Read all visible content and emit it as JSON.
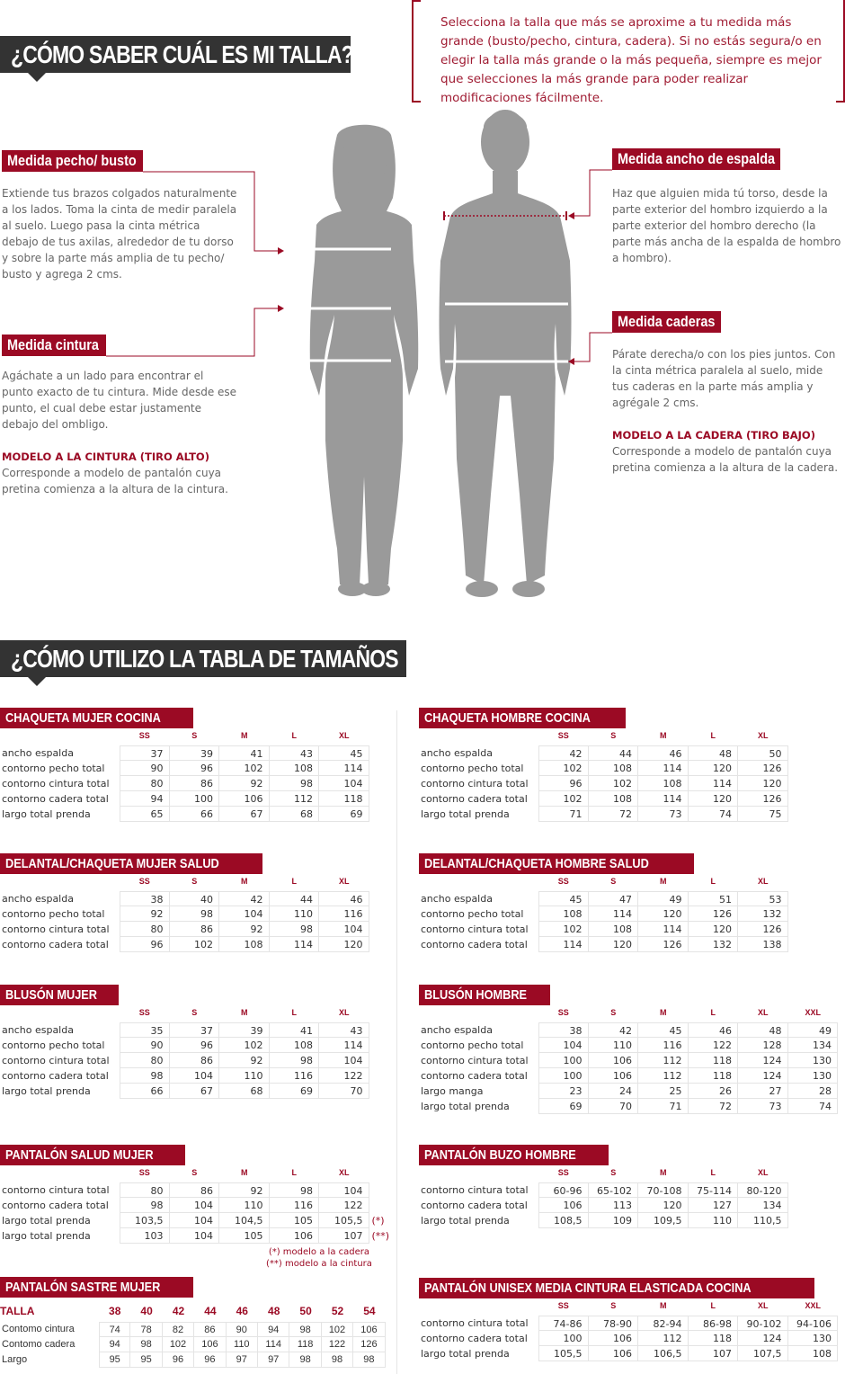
{
  "colors": {
    "accent": "#9b0a24",
    "heading_bg": "#333333",
    "figure": "#9a9a9a"
  },
  "header": {
    "title": "¿CÓMO SABER CUÁL ES MI TALLA?",
    "note": "Selecciona la talla que más se aproxime a tu medida más grande (busto/pecho, cintura, cadera). Si no estás segura/o en elegir la talla más grande o la más pequeña, siempre es mejor que selecciones la más grande para poder realizar modificaciones fácilmente."
  },
  "measures": {
    "pecho": {
      "label": "Medida pecho/ busto",
      "text": "Extiende tus brazos colgados naturalmente a los lados. Toma la cinta de medir paralela al suelo. Luego pasa la cinta métrica debajo de tus axilas, alrededor de tu dorso y sobre la parte más amplia de tu pecho/ busto y agrega 2 cms."
    },
    "cintura": {
      "label": "Medida cintura",
      "text": "Agáchate a un lado para encontrar el punto exacto de tu cintura. Mide desde ese punto, el cual debe estar justamente debajo del ombligo.",
      "model_title": "MODELO A LA CINTURA (TIRO ALTO)",
      "model_text": "Corresponde a modelo de pantalón cuya pretina comienza a la altura de la cintura."
    },
    "espalda": {
      "label": "Medida ancho de espalda",
      "text": "Haz que alguien mida tú torso, desde la parte exterior del hombro izquierdo a la parte exterior del hombro derecho (la parte más ancha de la espalda de hombro a hombro)."
    },
    "caderas": {
      "label": "Medida caderas",
      "text": "Párate derecha/o con los pies juntos. Con la cinta métrica paralela al suelo, mide tus caderas en la parte más amplia y agrégale 2 cms.",
      "model_title": "MODELO A LA CADERA (TIRO BAJO)",
      "model_text": "Corresponde a modelo de pantalón cuya pretina comienza a la altura de la cadera."
    }
  },
  "section2": {
    "title": "¿CÓMO UTILIZO LA TABLA DE TAMAÑOS"
  },
  "tables": {
    "chaqueta_mujer": {
      "title": "CHAQUETA MUJER COCINA",
      "sizes": [
        "SS",
        "S",
        "M",
        "L",
        "XL"
      ],
      "rows": [
        {
          "label": "ancho espalda",
          "values": [
            "37",
            "39",
            "41",
            "43",
            "45"
          ]
        },
        {
          "label": "contorno pecho total",
          "values": [
            "90",
            "96",
            "102",
            "108",
            "114"
          ]
        },
        {
          "label": "contorno cintura total",
          "values": [
            "80",
            "86",
            "92",
            "98",
            "104"
          ]
        },
        {
          "label": "contorno cadera total",
          "values": [
            "94",
            "100",
            "106",
            "112",
            "118"
          ]
        },
        {
          "label": "largo total prenda",
          "values": [
            "65",
            "66",
            "67",
            "68",
            "69"
          ]
        }
      ]
    },
    "chaqueta_hombre": {
      "title": "CHAQUETA HOMBRE COCINA",
      "sizes": [
        "SS",
        "S",
        "M",
        "L",
        "XL"
      ],
      "rows": [
        {
          "label": "ancho espalda",
          "values": [
            "42",
            "44",
            "46",
            "48",
            "50"
          ]
        },
        {
          "label": "contorno pecho total",
          "values": [
            "102",
            "108",
            "114",
            "120",
            "126"
          ]
        },
        {
          "label": "contorno cintura total",
          "values": [
            "96",
            "102",
            "108",
            "114",
            "120"
          ]
        },
        {
          "label": "contorno cadera total",
          "values": [
            "102",
            "108",
            "114",
            "120",
            "126"
          ]
        },
        {
          "label": "largo total prenda",
          "values": [
            "71",
            "72",
            "73",
            "74",
            "75"
          ]
        }
      ]
    },
    "delantal_mujer": {
      "title": "DELANTAL/CHAQUETA MUJER SALUD",
      "sizes": [
        "SS",
        "S",
        "M",
        "L",
        "XL"
      ],
      "rows": [
        {
          "label": "ancho espalda",
          "values": [
            "38",
            "40",
            "42",
            "44",
            "46"
          ]
        },
        {
          "label": "contorno pecho total",
          "values": [
            "92",
            "98",
            "104",
            "110",
            "116"
          ]
        },
        {
          "label": "contorno cintura total",
          "values": [
            "80",
            "86",
            "92",
            "98",
            "104"
          ]
        },
        {
          "label": "contorno cadera total",
          "values": [
            "96",
            "102",
            "108",
            "114",
            "120"
          ]
        }
      ]
    },
    "delantal_hombre": {
      "title": "DELANTAL/CHAQUETA HOMBRE SALUD",
      "sizes": [
        "SS",
        "S",
        "M",
        "L",
        "XL"
      ],
      "rows": [
        {
          "label": "ancho espalda",
          "values": [
            "45",
            "47",
            "49",
            "51",
            "53"
          ]
        },
        {
          "label": "contorno pecho total",
          "values": [
            "108",
            "114",
            "120",
            "126",
            "132"
          ]
        },
        {
          "label": "contorno cintura total",
          "values": [
            "102",
            "108",
            "114",
            "120",
            "126"
          ]
        },
        {
          "label": "contorno cadera total",
          "values": [
            "114",
            "120",
            "126",
            "132",
            "138"
          ]
        }
      ]
    },
    "bluson_mujer": {
      "title": "BLUSÓN MUJER",
      "sizes": [
        "SS",
        "S",
        "M",
        "L",
        "XL"
      ],
      "rows": [
        {
          "label": "ancho espalda",
          "values": [
            "35",
            "37",
            "39",
            "41",
            "43"
          ]
        },
        {
          "label": "contorno pecho total",
          "values": [
            "90",
            "96",
            "102",
            "108",
            "114"
          ]
        },
        {
          "label": "contorno cintura total",
          "values": [
            "80",
            "86",
            "92",
            "98",
            "104"
          ]
        },
        {
          "label": "contorno cadera total",
          "values": [
            "98",
            "104",
            "110",
            "116",
            "122"
          ]
        },
        {
          "label": "largo total prenda",
          "values": [
            "66",
            "67",
            "68",
            "69",
            "70"
          ]
        }
      ]
    },
    "bluson_hombre": {
      "title": "BLUSÓN HOMBRE",
      "sizes": [
        "SS",
        "S",
        "M",
        "L",
        "XL",
        "XXL"
      ],
      "rows": [
        {
          "label": "ancho espalda",
          "values": [
            "38",
            "42",
            "45",
            "46",
            "48",
            "49"
          ]
        },
        {
          "label": "contorno pecho total",
          "values": [
            "104",
            "110",
            "116",
            "122",
            "128",
            "134"
          ]
        },
        {
          "label": "contorno cintura total",
          "values": [
            "100",
            "106",
            "112",
            "118",
            "124",
            "130"
          ]
        },
        {
          "label": "contorno cadera total",
          "values": [
            "100",
            "106",
            "112",
            "118",
            "124",
            "130"
          ]
        },
        {
          "label": "largo manga",
          "values": [
            "23",
            "24",
            "25",
            "26",
            "27",
            "28"
          ]
        },
        {
          "label": "largo total prenda",
          "values": [
            "69",
            "70",
            "71",
            "72",
            "73",
            "74"
          ]
        }
      ]
    },
    "pantalon_salud_mujer": {
      "title": "PANTALÓN SALUD MUJER",
      "sizes": [
        "SS",
        "S",
        "M",
        "L",
        "XL"
      ],
      "rows": [
        {
          "label": "contorno cintura total",
          "values": [
            "80",
            "86",
            "92",
            "98",
            "104"
          ]
        },
        {
          "label": "contorno cadera total",
          "values": [
            "98",
            "104",
            "110",
            "116",
            "122"
          ]
        },
        {
          "label": "largo total prenda",
          "values": [
            "103,5",
            "104",
            "104,5",
            "105",
            "105,5"
          ],
          "suffix": "(*)"
        },
        {
          "label": "largo total prenda",
          "values": [
            "103",
            "104",
            "105",
            "106",
            "107"
          ],
          "suffix": "(**)"
        }
      ],
      "notes": [
        "(*) modelo a la cadera",
        "(**) modelo a la cintura"
      ]
    },
    "pantalon_buzo_hombre": {
      "title": "PANTALÓN BUZO HOMBRE",
      "sizes": [
        "SS",
        "S",
        "M",
        "L",
        "XL"
      ],
      "rows": [
        {
          "label": "contorno cintura total",
          "values": [
            "60-96",
            "65-102",
            "70-108",
            "75-114",
            "80-120"
          ]
        },
        {
          "label": "contorno cadera total",
          "values": [
            "106",
            "113",
            "120",
            "127",
            "134"
          ]
        },
        {
          "label": "largo total prenda",
          "values": [
            "108,5",
            "109",
            "109,5",
            "110",
            "110,5"
          ]
        }
      ]
    },
    "pantalon_sastre_mujer": {
      "title": "PANTALÓN SASTRE MUJER",
      "corner": "TALLA",
      "sizes": [
        "38",
        "40",
        "42",
        "44",
        "46",
        "48",
        "50",
        "52",
        "54"
      ],
      "rows": [
        {
          "label": "Contomo cintura",
          "values": [
            "74",
            "78",
            "82",
            "86",
            "90",
            "94",
            "98",
            "102",
            "106"
          ]
        },
        {
          "label": "Contomo cadera",
          "values": [
            "94",
            "98",
            "102",
            "106",
            "110",
            "114",
            "118",
            "122",
            "126"
          ]
        },
        {
          "label": "Largo",
          "values": [
            "95",
            "95",
            "96",
            "96",
            "97",
            "97",
            "98",
            "98",
            "98"
          ]
        }
      ]
    },
    "pantalon_unisex": {
      "title": "PANTALÓN UNISEX MEDIA CINTURA ELASTICADA COCINA",
      "sizes": [
        "SS",
        "S",
        "M",
        "L",
        "XL",
        "XXL"
      ],
      "rows": [
        {
          "label": "contorno cintura total",
          "values": [
            "74-86",
            "78-90",
            "82-94",
            "86-98",
            "90-102",
            "94-106"
          ]
        },
        {
          "label": "contorno cadera total",
          "values": [
            "100",
            "106",
            "112",
            "118",
            "124",
            "130"
          ]
        },
        {
          "label": "largo total prenda",
          "values": [
            "105,5",
            "106",
            "106,5",
            "107",
            "107,5",
            "108"
          ]
        }
      ]
    }
  }
}
